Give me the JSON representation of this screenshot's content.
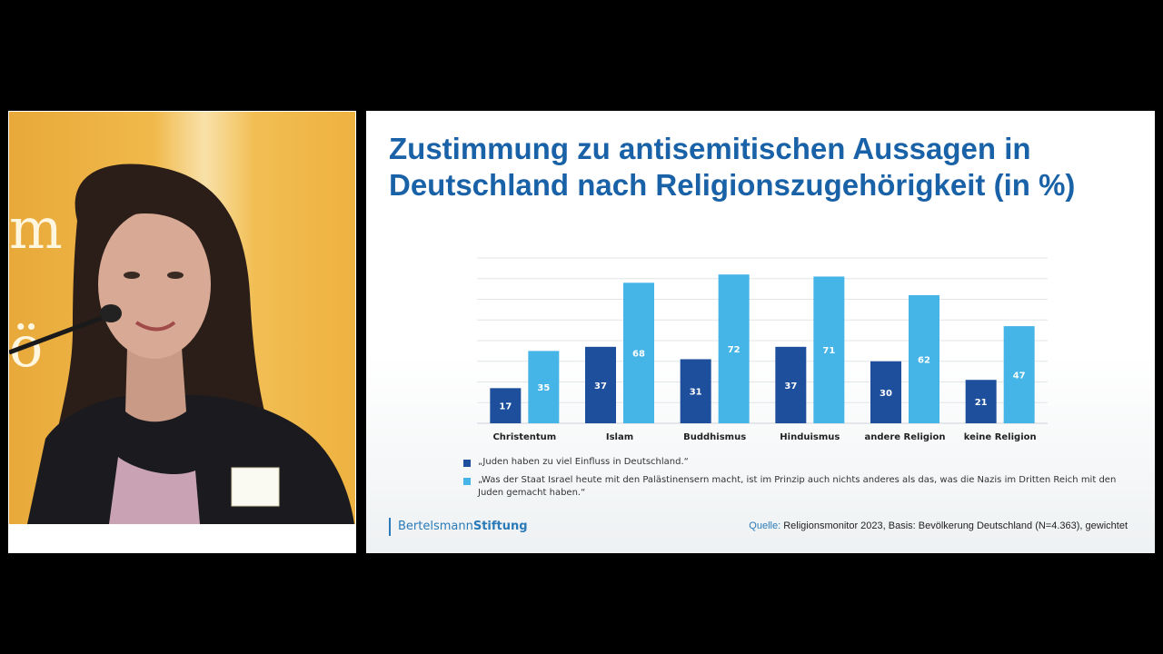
{
  "slide": {
    "title": "Zustimmung zu antisemitischen Aussagen in Deutschland nach Religionszugehörigkeit (in %)",
    "logo_regular": "Bertelsmann",
    "logo_bold": "Stiftung",
    "source_label": "Quelle:",
    "source_text": "Religionsmonitor 2023, Basis: Bevölkerung Deutschland (N=4.363), gewichtet"
  },
  "webcam": {
    "wall_letters": [
      "m",
      "ö"
    ]
  },
  "chart_data": {
    "type": "bar",
    "categories": [
      "Christentum",
      "Islam",
      "Buddhismus",
      "Hinduismus",
      "andere Religion",
      "keine Religion"
    ],
    "series": [
      {
        "name": "„Juden haben zu viel Einfluss in Deutschland.“",
        "color": "#1e4f9c",
        "values": [
          17,
          37,
          31,
          37,
          30,
          21
        ]
      },
      {
        "name": "„Was der Staat Israel heute mit den Palästinensern macht, ist im Prinzip auch nichts anderes als das, was die Nazis im Dritten Reich mit den Juden gemacht haben.“",
        "color": "#45b4e6",
        "values": [
          35,
          68,
          72,
          71,
          62,
          47
        ]
      }
    ],
    "ylim": [
      0,
      80
    ],
    "grid": true,
    "legend": "bottom",
    "data_labels": true
  }
}
